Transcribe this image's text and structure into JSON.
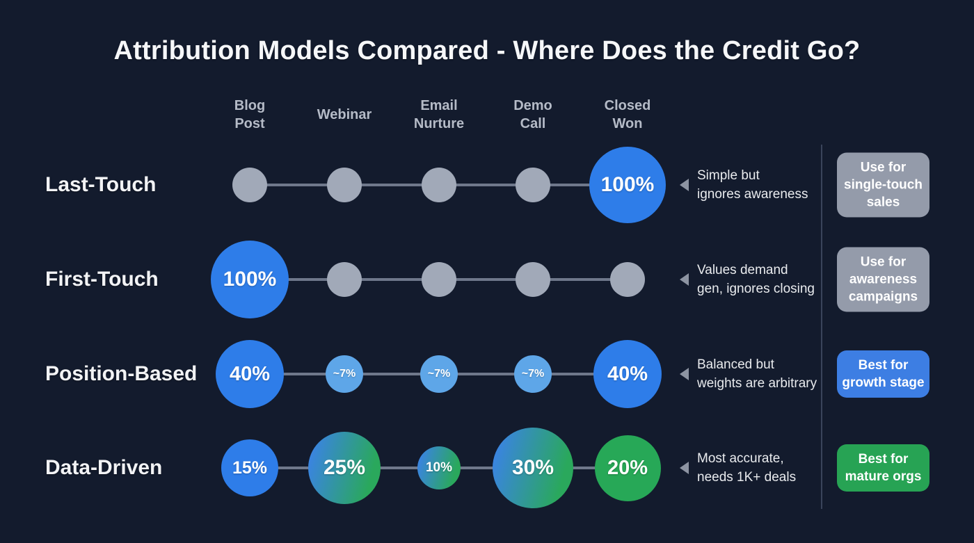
{
  "title": "Attribution Models Compared - Where Does the Credit Go?",
  "columns": [
    {
      "id": "blog-post",
      "label": "Blog Post",
      "lines": [
        "Blog",
        "Post"
      ]
    },
    {
      "id": "webinar",
      "label": "Webinar",
      "lines": [
        "Webinar"
      ]
    },
    {
      "id": "email-nurture",
      "label": "Email Nurture",
      "lines": [
        "Email",
        "Nurture"
      ]
    },
    {
      "id": "demo-call",
      "label": "Demo Call",
      "lines": [
        "Demo",
        "Call"
      ]
    },
    {
      "id": "closed-won",
      "label": "Closed Won",
      "lines": [
        "Closed",
        "Won"
      ]
    }
  ],
  "rows": [
    {
      "id": "last-touch",
      "label": "Last-Touch",
      "circles": [
        {
          "column": "blog-post",
          "label": "",
          "variant": "gray",
          "diameter": 50
        },
        {
          "column": "webinar",
          "label": "",
          "variant": "gray",
          "diameter": 50
        },
        {
          "column": "email-nurture",
          "label": "",
          "variant": "gray",
          "diameter": 50
        },
        {
          "column": "demo-call",
          "label": "",
          "variant": "gray",
          "diameter": 50
        },
        {
          "column": "closed-won",
          "label": "100%",
          "variant": "blue",
          "diameter": 110
        }
      ],
      "note_lines": [
        "Simple but",
        "ignores awareness"
      ],
      "badge": {
        "lines": [
          "Use for",
          "single-touch",
          "sales"
        ],
        "label": "Use for single-touch sales",
        "variant": "gray"
      }
    },
    {
      "id": "first-touch",
      "label": "First-Touch",
      "circles": [
        {
          "column": "blog-post",
          "label": "100%",
          "variant": "blue",
          "diameter": 112
        },
        {
          "column": "webinar",
          "label": "",
          "variant": "gray",
          "diameter": 50
        },
        {
          "column": "email-nurture",
          "label": "",
          "variant": "gray",
          "diameter": 50
        },
        {
          "column": "demo-call",
          "label": "",
          "variant": "gray",
          "diameter": 50
        },
        {
          "column": "closed-won",
          "label": "",
          "variant": "gray",
          "diameter": 50
        }
      ],
      "note_lines": [
        "Values demand",
        "gen, ignores closing"
      ],
      "badge": {
        "lines": [
          "Use for",
          "awareness",
          "campaigns"
        ],
        "label": "Use for awareness campaigns",
        "variant": "gray"
      }
    },
    {
      "id": "position-based",
      "label": "Position-Based",
      "circles": [
        {
          "column": "blog-post",
          "label": "40%",
          "variant": "blue",
          "diameter": 98
        },
        {
          "column": "webinar",
          "label": "~7%",
          "variant": "lightblue",
          "diameter": 54
        },
        {
          "column": "email-nurture",
          "label": "~7%",
          "variant": "lightblue",
          "diameter": 54
        },
        {
          "column": "demo-call",
          "label": "~7%",
          "variant": "lightblue",
          "diameter": 54
        },
        {
          "column": "closed-won",
          "label": "40%",
          "variant": "blue",
          "diameter": 98
        }
      ],
      "note_lines": [
        "Balanced but",
        "weights are arbitrary"
      ],
      "badge": {
        "lines": [
          "Best for",
          "growth stage"
        ],
        "label": "Best for growth stage",
        "variant": "blue"
      }
    },
    {
      "id": "data-driven",
      "label": "Data-Driven",
      "circles": [
        {
          "column": "blog-post",
          "label": "15%",
          "variant": "blue",
          "diameter": 82
        },
        {
          "column": "webinar",
          "label": "25%",
          "variant": "gradient",
          "diameter": 104
        },
        {
          "column": "email-nurture",
          "label": "10%",
          "variant": "gradient",
          "diameter": 62
        },
        {
          "column": "demo-call",
          "label": "30%",
          "variant": "gradient",
          "diameter": 116
        },
        {
          "column": "closed-won",
          "label": "20%",
          "variant": "green",
          "diameter": 95
        }
      ],
      "note_lines": [
        "Most accurate,",
        "needs 1K+ deals"
      ],
      "badge": {
        "lines": [
          "Best for",
          "mature orgs"
        ],
        "label": "Best for mature orgs",
        "variant": "green"
      }
    }
  ],
  "colors": {
    "background": "#131b2d",
    "blue": "#2e7de9",
    "light_blue": "#5ea6e8",
    "green": "#27a857",
    "gradient_start": "#3b82e8",
    "gradient_end": "#2aa85c",
    "gray_circle": "#a1a9b8",
    "connector": "#6f788b",
    "badge_gray": "#949baa",
    "badge_blue": "#3d7ee3",
    "badge_green": "#27a354",
    "divider": "#3a445a",
    "title_text": "#f6f7f9",
    "header_text": "#b5bbc7",
    "note_text": "#e9ebee"
  },
  "chart_data": {
    "type": "heatmap",
    "title": "Attribution Models Compared - Where Does the Credit Go?",
    "categories": [
      "Blog Post",
      "Webinar",
      "Email Nurture",
      "Demo Call",
      "Closed Won"
    ],
    "series": [
      {
        "name": "Last-Touch",
        "values": [
          0,
          0,
          0,
          0,
          100
        ],
        "displayed": [
          "",
          "",
          "",
          "",
          "100%"
        ]
      },
      {
        "name": "First-Touch",
        "values": [
          100,
          0,
          0,
          0,
          0
        ],
        "displayed": [
          "100%",
          "",
          "",
          "",
          ""
        ]
      },
      {
        "name": "Position-Based",
        "values": [
          40,
          7,
          7,
          7,
          40
        ],
        "displayed": [
          "40%",
          "~7%",
          "~7%",
          "~7%",
          "40%"
        ]
      },
      {
        "name": "Data-Driven",
        "values": [
          15,
          25,
          10,
          30,
          20
        ],
        "displayed": [
          "15%",
          "25%",
          "10%",
          "30%",
          "20%"
        ]
      }
    ],
    "annotations": [
      "Simple but ignores awareness",
      "Values demand gen, ignores closing",
      "Balanced but weights are arbitrary",
      "Most accurate, needs 1K+ deals"
    ],
    "recommendations": [
      "Use for single-touch sales",
      "Use for awareness campaigns",
      "Best for growth stage",
      "Best for mature orgs"
    ]
  }
}
